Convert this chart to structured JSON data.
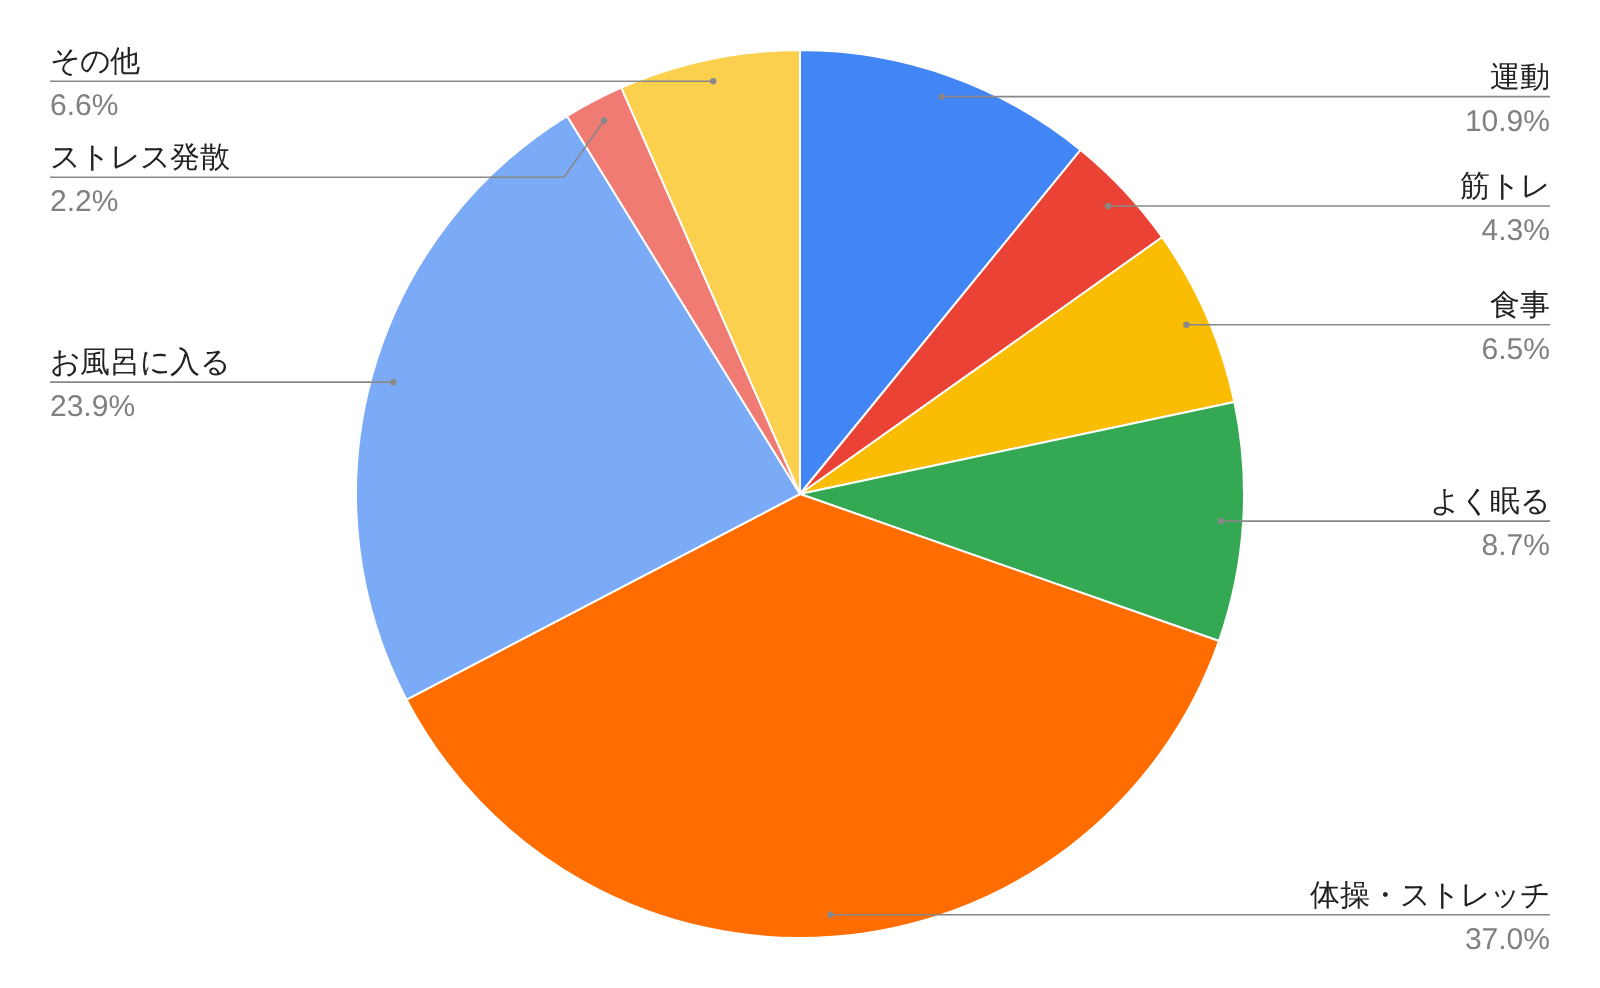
{
  "chart_data": {
    "type": "pie",
    "categories": [
      "運動",
      "筋トレ",
      "食事",
      "よく眠る",
      "体操・ストレッチ",
      "お風呂に入る",
      "ストレス発散",
      "その他"
    ],
    "values": [
      10.9,
      4.3,
      6.5,
      8.7,
      37.0,
      23.9,
      2.2,
      6.6
    ],
    "colors": [
      "#4285f4",
      "#ea4335",
      "#fbbc04",
      "#34a853",
      "#ff6d01",
      "#7baaf7",
      "#f07b72",
      "#fcd04f"
    ],
    "value_labels": [
      "10.9%",
      "4.3%",
      "6.5%",
      "8.7%",
      "37.0%",
      "23.9%",
      "2.2%",
      "6.6%"
    ]
  }
}
